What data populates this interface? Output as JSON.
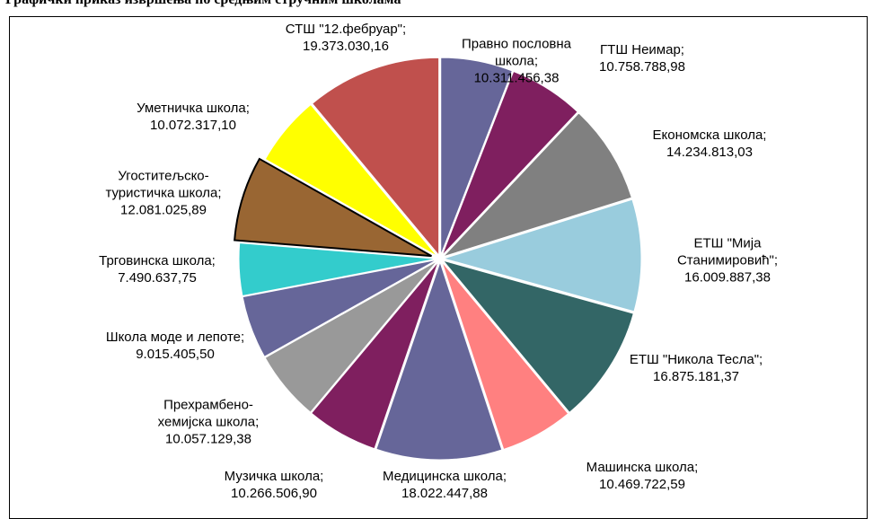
{
  "chart_data": {
    "type": "pie",
    "title": "Графички приказ извршења по средњим стручним школама",
    "categories": [
      "Правно пословна школа;",
      "ГТШ Неимар;",
      "Економска школа;",
      "ЕТШ \"Мија Станимировић\";",
      "ЕТШ \"Никола Тесла\";",
      "Машинска школа;",
      "Медицинска школа;",
      "Музичка школа;",
      "Прехрамбено-хемијска школа;",
      "Школа моде и лепоте;",
      "Трговинска школа;",
      "Угоститељско-туристичка школа;",
      "Уметничка школа;",
      "СТШ \"12.фебруар\";"
    ],
    "values": [
      10311456.38,
      10758788.98,
      14234813.03,
      16009887.38,
      16875181.37,
      10469722.59,
      18022447.88,
      10266506.9,
      10057129.38,
      9015405.5,
      7490637.75,
      12081025.89,
      10072317.1,
      19373030.16
    ],
    "value_labels": [
      "10.311.456,38",
      "10.758.788,98",
      "14.234.813,03",
      "16.009.887,38",
      "16.875.181,37",
      "10.469.722,59",
      "18.022.447,88",
      "10.266.506,90",
      "10.057.129,38",
      "9.015.405,50",
      "7.490.637,75",
      "12.081.025,89",
      "10.072.317,10",
      "19.373.030,16"
    ],
    "colors": [
      "#666699",
      "#7f1f5f",
      "#808080",
      "#99ccdd",
      "#336666",
      "#ff8080",
      "#666699",
      "#7f1f5f",
      "#999999",
      "#666699",
      "#33cccc",
      "#996633",
      "#ffff00",
      "#c0504d"
    ]
  }
}
